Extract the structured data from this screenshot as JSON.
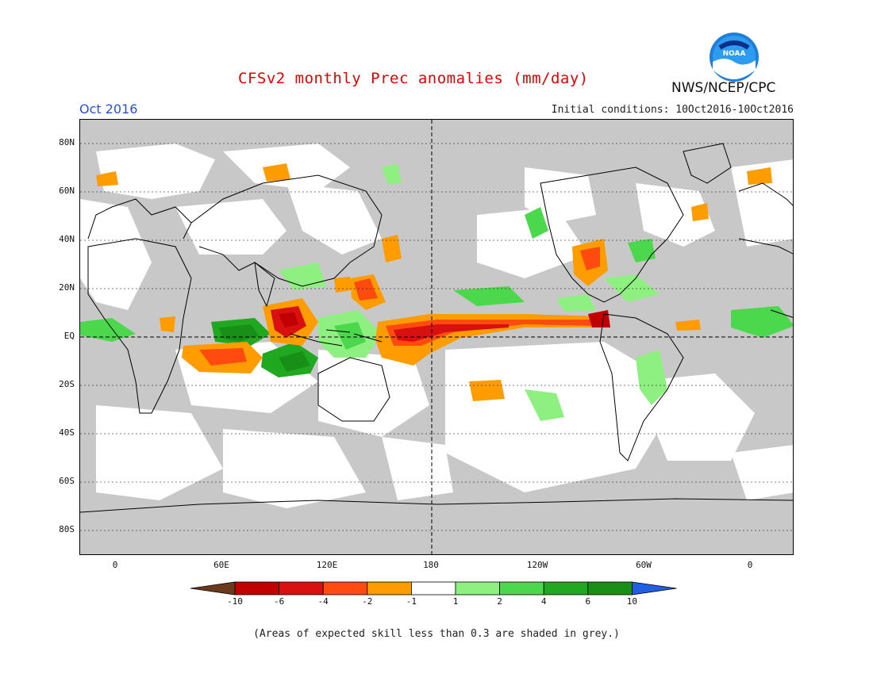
{
  "header": {
    "title": "CFSv2 monthly Prec anomalies (mm/day)",
    "month": "Oct 2016",
    "initial_conditions": "Initial conditions: 10Oct2016-10Oct2016",
    "agency": "NWS/NCEP/CPC",
    "logo_text": "NOAA"
  },
  "map": {
    "lat_labels": [
      "80N",
      "60N",
      "40N",
      "20N",
      "EQ",
      "20S",
      "40S",
      "60S",
      "80S"
    ],
    "lon_labels": [
      "0",
      "60E",
      "120E",
      "180",
      "120W",
      "60W",
      "0"
    ],
    "background_color": "#c8c8c8"
  },
  "colorbar": {
    "labels": [
      "-10",
      "-6",
      "-4",
      "-2",
      "-1",
      "1",
      "2",
      "4",
      "6",
      "10"
    ],
    "colors": [
      "#6b3a1e",
      "#c00000",
      "#d81010",
      "#ff4a10",
      "#ff9c00",
      "#ffffff",
      "#8ef080",
      "#4cd84c",
      "#20a820",
      "#189018",
      "#2060e0"
    ]
  },
  "footnote": "(Areas of expected skill less than 0.3 are shaded in grey.)"
}
